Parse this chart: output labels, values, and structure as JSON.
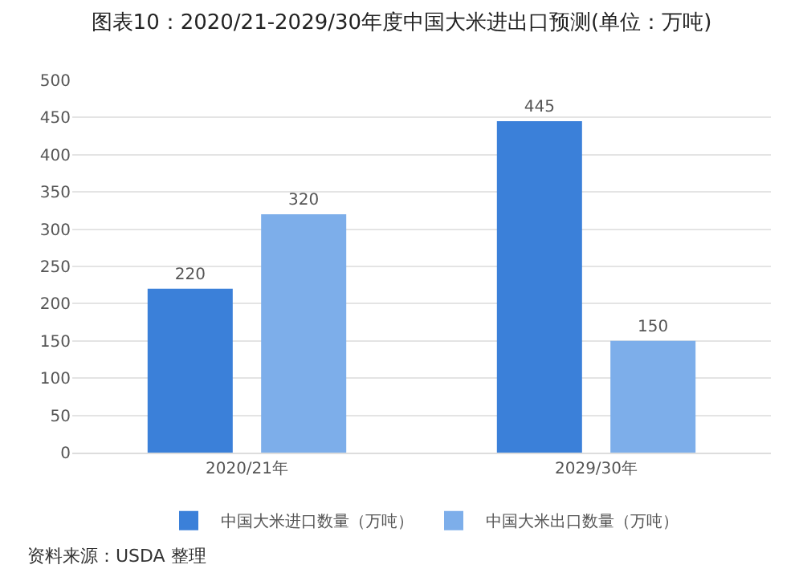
{
  "chart_data": {
    "type": "bar",
    "title": "图表10：2020/21-2029/30年度中国大米进出口预测(单位：万吨)",
    "categories": [
      "2020/21年",
      "2029/30年"
    ],
    "series": [
      {
        "name": "中国大米进口数量（万吨）",
        "color": "#3b80d9",
        "values": [
          220,
          445
        ]
      },
      {
        "name": "中国大米出口数量（万吨）",
        "color": "#7daeea",
        "values": [
          320,
          150
        ]
      }
    ],
    "ylim": [
      0,
      500
    ],
    "yticks": [
      0,
      50,
      100,
      150,
      200,
      250,
      300,
      350,
      400,
      450,
      500
    ],
    "grid": "y",
    "legend": "bottom",
    "data_labels": true,
    "annotations": [
      "资料来源：USDA 整理"
    ]
  }
}
